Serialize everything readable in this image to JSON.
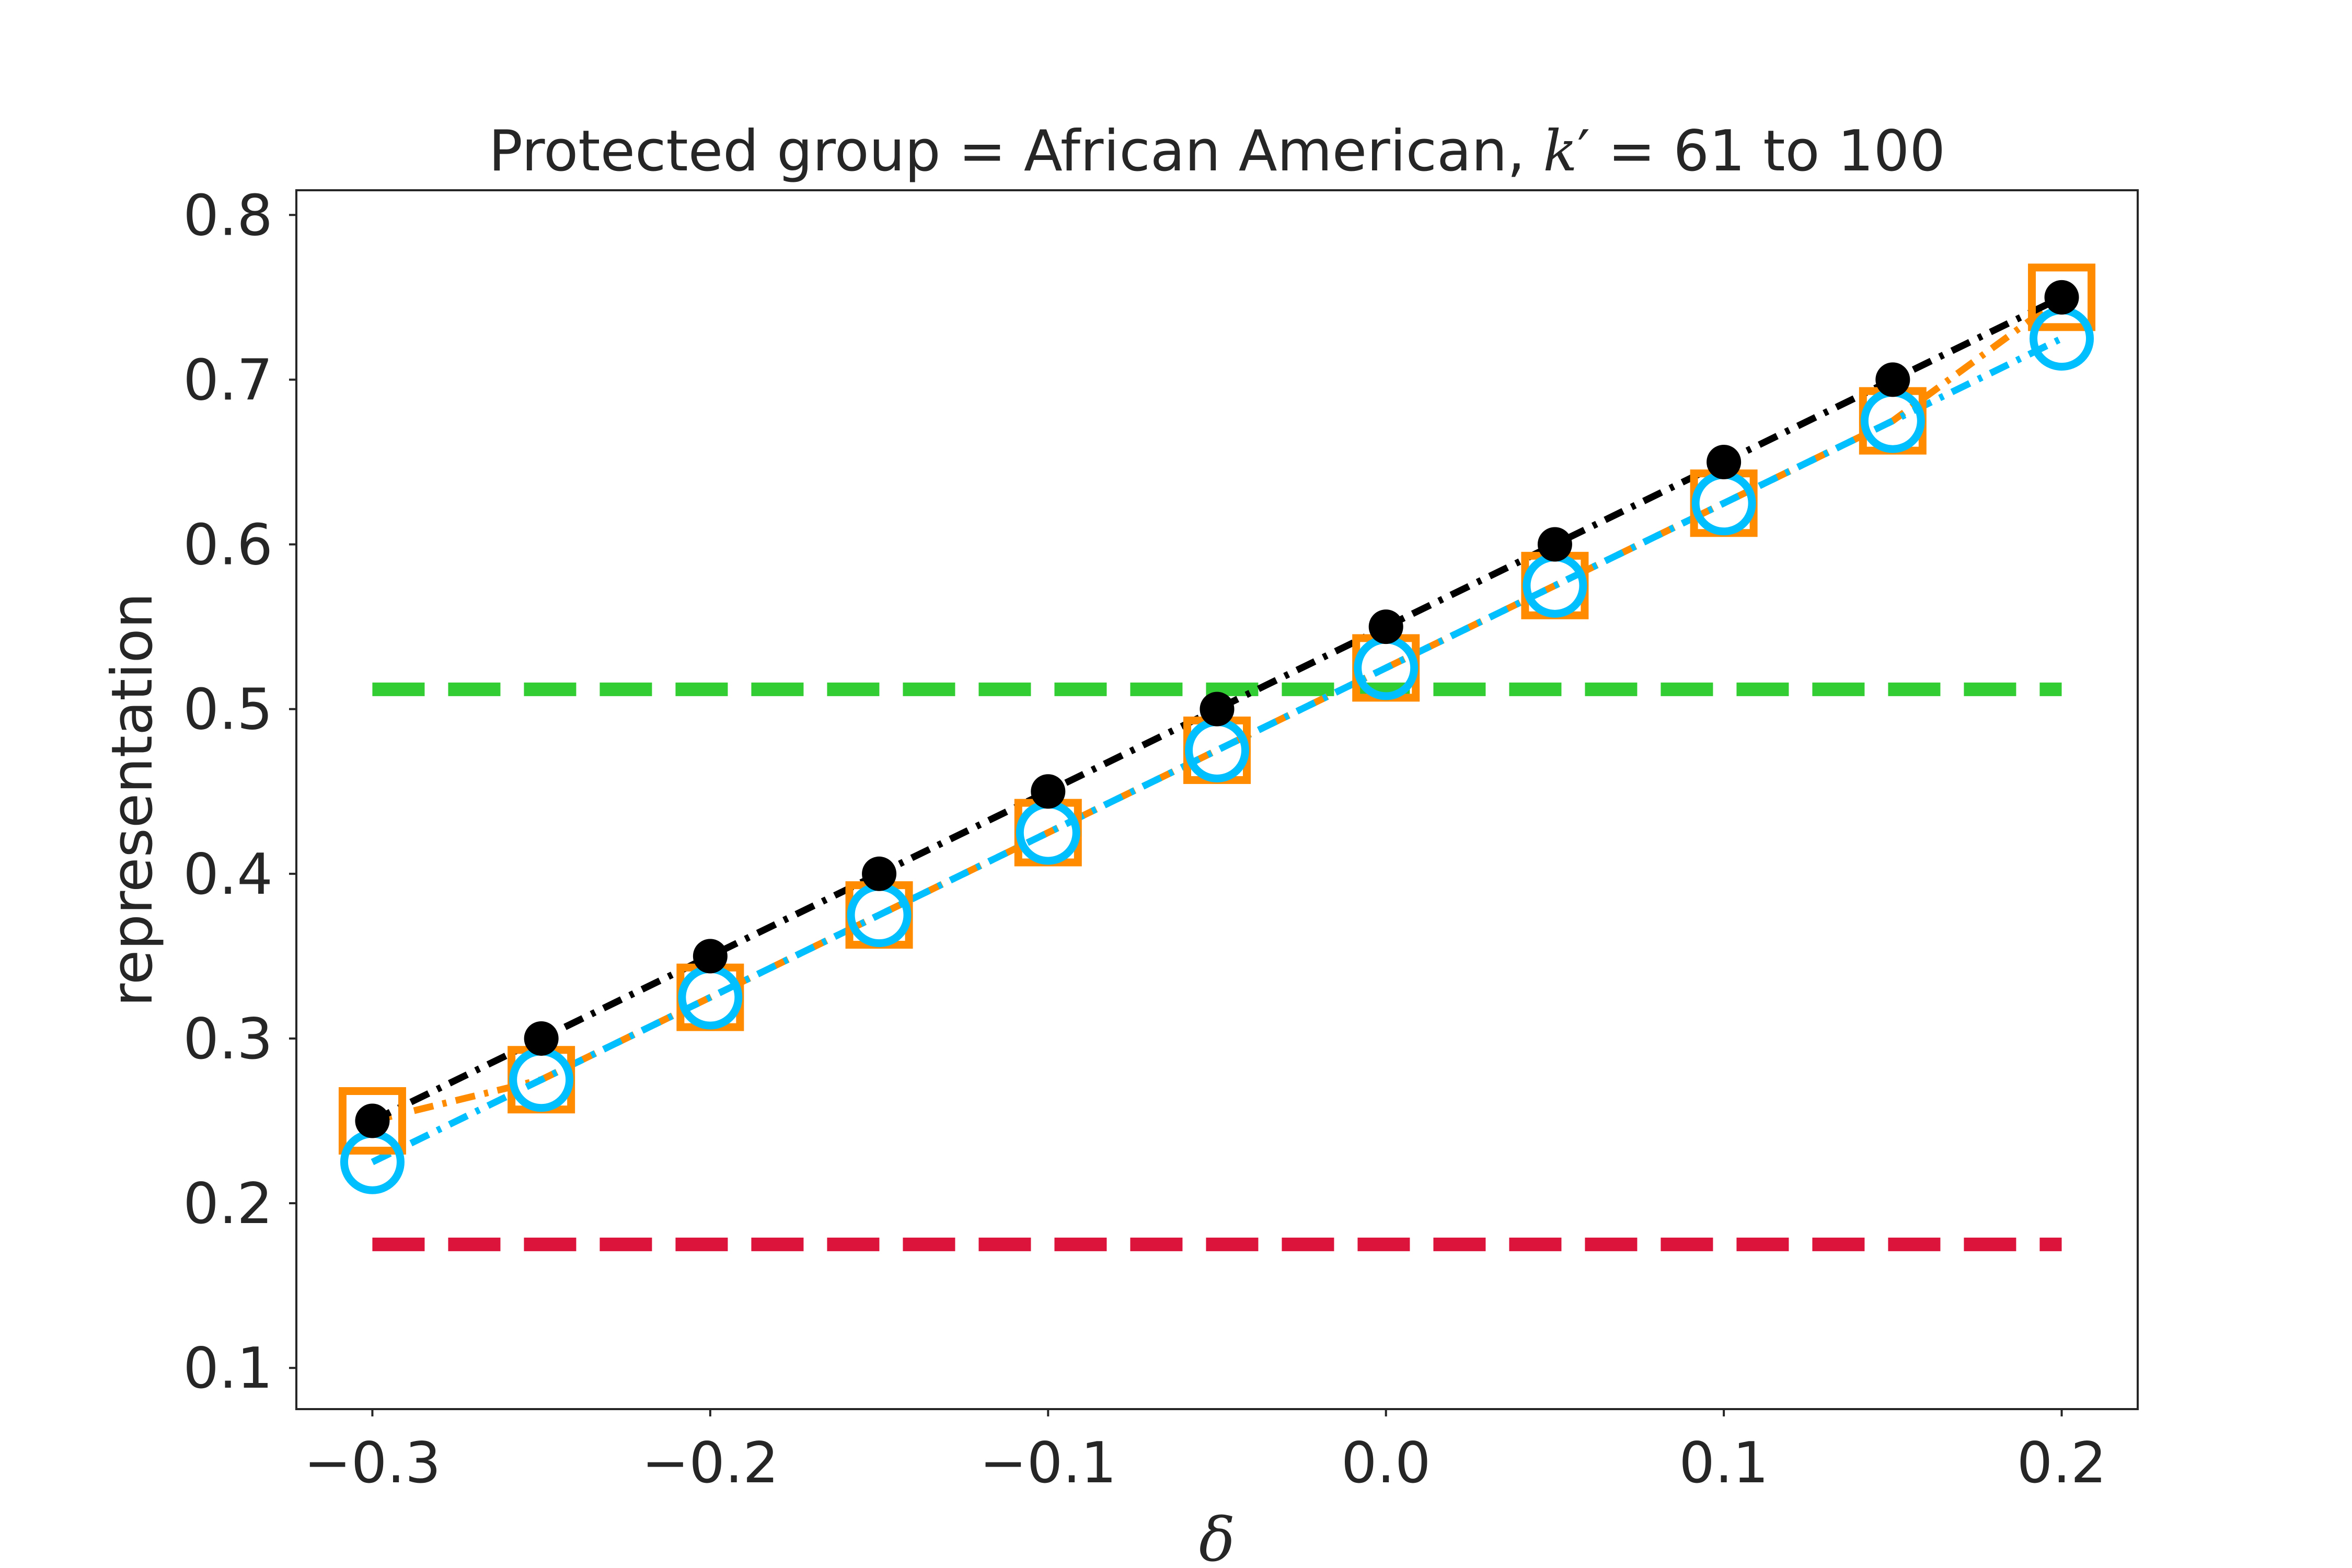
{
  "chart_data": {
    "type": "line",
    "title": "Protected group = African American, k′ = 61 to 100",
    "title_parts": {
      "prefix": "Protected group = African American, ",
      "var": "k",
      "prime": "′",
      "suffix": " = 61 to 100"
    },
    "xlabel": "δ",
    "ylabel": "representation",
    "x": [
      -0.3,
      -0.25,
      -0.2,
      -0.15,
      -0.1,
      -0.05,
      0.0,
      0.05,
      0.1,
      0.15,
      0.2
    ],
    "xlim": [
      -0.3225,
      0.2225
    ],
    "ylim": [
      0.075,
      0.815
    ],
    "xticks": [
      -0.3,
      -0.2,
      -0.1,
      0.0,
      0.1,
      0.2
    ],
    "xtick_labels": [
      "−0.3",
      "−0.2",
      "−0.1",
      "0.0",
      "0.1",
      "0.2"
    ],
    "yticks": [
      0.1,
      0.2,
      0.3,
      0.4,
      0.5,
      0.6,
      0.7,
      0.8
    ],
    "ytick_labels": [
      "0.1",
      "0.2",
      "0.3",
      "0.4",
      "0.5",
      "0.6",
      "0.7",
      "0.8"
    ],
    "grid": false,
    "legend": "none",
    "series": [
      {
        "color": "#ff8c00",
        "marker": "square-open",
        "line_style": "dash-dot",
        "values": [
          0.25,
          0.275,
          0.325,
          0.375,
          0.425,
          0.475,
          0.525,
          0.575,
          0.625,
          0.675,
          0.75
        ]
      },
      {
        "color": "#00bfff",
        "marker": "circle-open",
        "line_style": "dash-dot",
        "values": [
          0.225,
          0.275,
          0.325,
          0.375,
          0.425,
          0.475,
          0.525,
          0.575,
          0.625,
          0.675,
          0.725
        ]
      },
      {
        "color": "#000000",
        "marker": "circle-filled",
        "line_style": "dash-dot",
        "values": [
          0.25,
          0.3,
          0.35,
          0.4,
          0.45,
          0.5,
          0.55,
          0.6,
          0.65,
          0.7,
          0.75
        ]
      }
    ],
    "reference_lines": [
      {
        "color": "#32cd32",
        "line_style": "dashed",
        "y": 0.512,
        "x_range": [
          -0.3,
          0.2
        ]
      },
      {
        "color": "#dc143c",
        "line_style": "dashed",
        "y": 0.175,
        "x_range": [
          -0.3,
          0.2
        ]
      }
    ]
  }
}
